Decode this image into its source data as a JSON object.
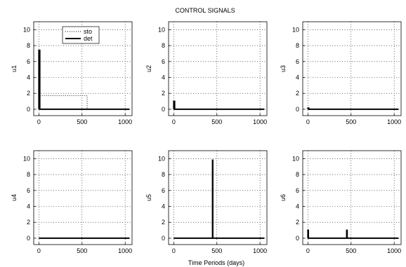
{
  "figure_title": "CONTROL SIGNALS",
  "common_xlabel": "Time Periods (days)",
  "legend": {
    "entries": [
      {
        "label": "sto",
        "style": "dotted"
      },
      {
        "label": "det",
        "style": "solid"
      }
    ],
    "placement": "top-left of u1 panel"
  },
  "chart_data": [
    {
      "type": "line",
      "ylabel": "u1",
      "xlim": [
        -60,
        1080
      ],
      "ylim": [
        -0.8,
        11
      ],
      "xticks": [
        "0",
        "500",
        "1000"
      ],
      "yticks": [
        "0",
        "2",
        "4",
        "6",
        "8",
        "10"
      ],
      "grid": true,
      "series": [
        {
          "name": "sto",
          "style": "dotted",
          "x": [
            0,
            0,
            10,
            10,
            560,
            560,
            1050
          ],
          "y": [
            0,
            7.4,
            7.4,
            1.7,
            1.7,
            0,
            0
          ]
        },
        {
          "name": "det",
          "style": "solid",
          "x": [
            0,
            0,
            10,
            10,
            1050
          ],
          "y": [
            0,
            7.4,
            7.4,
            0,
            0
          ]
        }
      ]
    },
    {
      "type": "line",
      "ylabel": "u2",
      "xlim": [
        -60,
        1080
      ],
      "ylim": [
        -0.8,
        11
      ],
      "xticks": [
        "0",
        "500",
        "1000"
      ],
      "yticks": [
        "0",
        "2",
        "4",
        "6",
        "8",
        "10"
      ],
      "grid": true,
      "series": [
        {
          "name": "det",
          "style": "solid",
          "x": [
            0,
            0,
            10,
            10,
            1050
          ],
          "y": [
            0,
            1.0,
            1.0,
            0,
            0
          ]
        }
      ]
    },
    {
      "type": "line",
      "ylabel": "u3",
      "xlim": [
        -60,
        1080
      ],
      "ylim": [
        -0.8,
        11
      ],
      "xticks": [
        "0",
        "500",
        "1000"
      ],
      "yticks": [
        "0",
        "2",
        "4",
        "6",
        "8",
        "10"
      ],
      "grid": true,
      "series": [
        {
          "name": "det",
          "style": "solid",
          "x": [
            0,
            0,
            10,
            10,
            1050
          ],
          "y": [
            0,
            0.15,
            0.15,
            0,
            0
          ]
        }
      ]
    },
    {
      "type": "line",
      "ylabel": "u4",
      "xlim": [
        -60,
        1080
      ],
      "ylim": [
        -0.8,
        11
      ],
      "xticks": [
        "0",
        "500",
        "1000"
      ],
      "yticks": [
        "0",
        "2",
        "4",
        "6",
        "8",
        "10"
      ],
      "grid": true,
      "series": [
        {
          "name": "det",
          "style": "solid",
          "x": [
            0,
            1050
          ],
          "y": [
            0,
            0
          ]
        }
      ]
    },
    {
      "type": "line",
      "ylabel": "u5",
      "xlim": [
        -60,
        1080
      ],
      "ylim": [
        -0.8,
        11
      ],
      "xticks": [
        "0",
        "500",
        "1000"
      ],
      "yticks": [
        "0",
        "2",
        "4",
        "6",
        "8",
        "10"
      ],
      "grid": true,
      "series": [
        {
          "name": "det",
          "style": "solid",
          "x": [
            0,
            450,
            450,
            452,
            452,
            1050
          ],
          "y": [
            0,
            0,
            9.8,
            9.8,
            0,
            0
          ]
        }
      ]
    },
    {
      "type": "line",
      "ylabel": "u6",
      "xlim": [
        -60,
        1080
      ],
      "ylim": [
        -0.8,
        11
      ],
      "xticks": [
        "0",
        "500",
        "1000"
      ],
      "yticks": [
        "0",
        "2",
        "4",
        "6",
        "8",
        "10"
      ],
      "grid": true,
      "series": [
        {
          "name": "det",
          "style": "solid",
          "x": [
            0,
            0,
            5,
            5,
            450,
            450,
            455,
            455,
            1050
          ],
          "y": [
            0,
            1.0,
            1.0,
            0,
            0,
            1.0,
            1.0,
            0,
            0
          ]
        }
      ]
    }
  ]
}
